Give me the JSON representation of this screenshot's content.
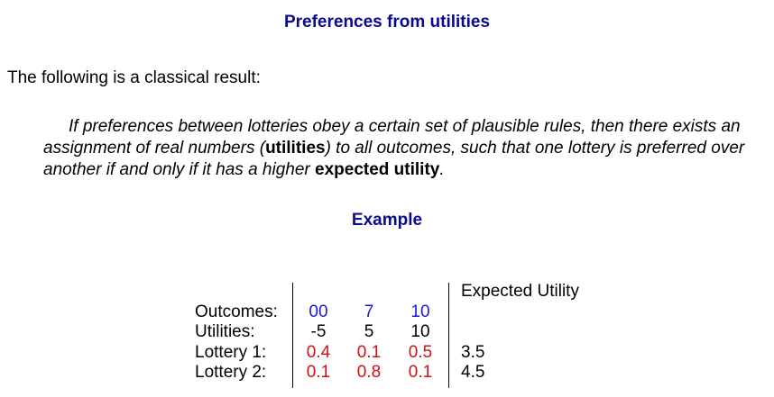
{
  "title": "Preferences from utilities",
  "intro": "The following is a classical result:",
  "theorem": {
    "part1": "If preferences between lotteries obey a certain set of plausible rules, then there exists an assignment of real numbers (",
    "term_utilities": "utilities",
    "part2": ") to all outcomes, such that one lottery is preferred over another if and only if it has a higher ",
    "term_expected_utility": "expected utility",
    "part3": "."
  },
  "example_heading": "Example",
  "table": {
    "expected_utility_header": "Expected Utility",
    "rows": [
      {
        "label": "Outcomes:",
        "values": [
          "00",
          "7",
          "10"
        ],
        "eu": ""
      },
      {
        "label": "Utilities:",
        "values": [
          "-5",
          "5",
          "10"
        ],
        "eu": ""
      },
      {
        "label": "Lottery 1:",
        "values": [
          "0.4",
          "0.1",
          "0.5"
        ],
        "eu": "3.5"
      },
      {
        "label": "Lottery 2:",
        "values": [
          "0.1",
          "0.8",
          "0.1"
        ],
        "eu": "4.5"
      }
    ]
  },
  "colors": {
    "heading": "#0a0a8c",
    "outcome_values": "#1a1ad6",
    "probability_values": "#d01010"
  }
}
